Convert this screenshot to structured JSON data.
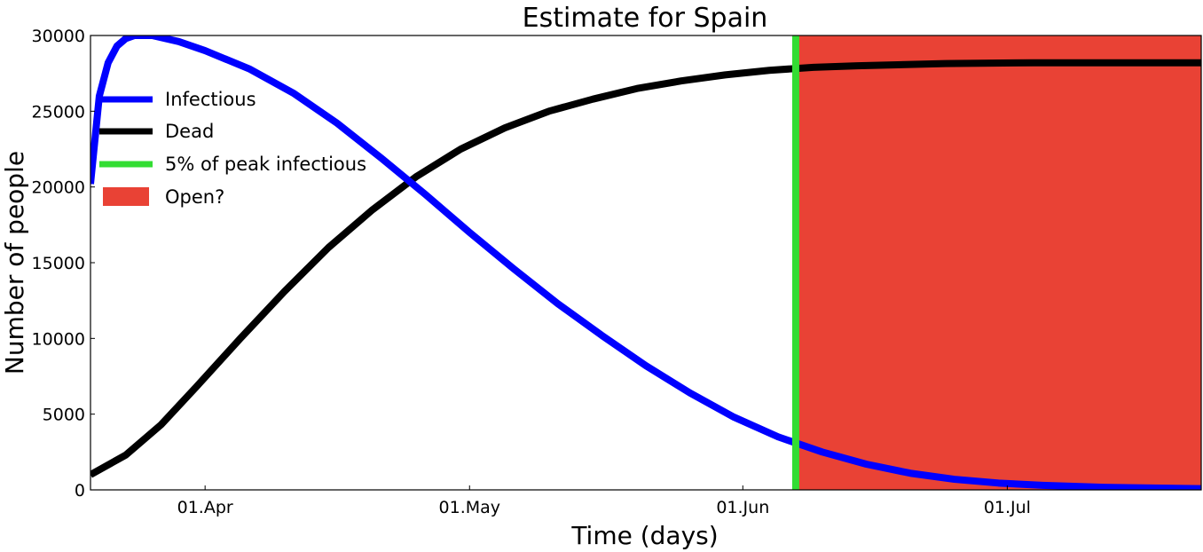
{
  "chart_data": {
    "type": "line",
    "title": "Estimate for Spain",
    "xlabel": "Time (days)",
    "ylabel": "Number of people",
    "x_domain": [
      "2020-03-19",
      "2020-07-23"
    ],
    "ylim": [
      0,
      30000
    ],
    "x_ticks": [
      {
        "date": "2020-04-01",
        "label": "01.Apr"
      },
      {
        "date": "2020-05-01",
        "label": "01.May"
      },
      {
        "date": "2020-06-01",
        "label": "01.Jun"
      },
      {
        "date": "2020-07-01",
        "label": "01.Jul"
      }
    ],
    "y_ticks": [
      0,
      5000,
      10000,
      15000,
      20000,
      25000,
      30000
    ],
    "grid": false,
    "legend_position": "upper-left",
    "series": [
      {
        "name": "Infectious",
        "color": "#0000ff",
        "points": [
          [
            "2020-03-19",
            20200
          ],
          [
            "2020-03-20",
            26000
          ],
          [
            "2020-03-21",
            28200
          ],
          [
            "2020-03-22",
            29300
          ],
          [
            "2020-03-23",
            29800
          ],
          [
            "2020-03-24",
            30000
          ],
          [
            "2020-03-26",
            30000
          ],
          [
            "2020-03-29",
            29600
          ],
          [
            "2020-04-01",
            29000
          ],
          [
            "2020-04-06",
            27800
          ],
          [
            "2020-04-11",
            26200
          ],
          [
            "2020-04-16",
            24200
          ],
          [
            "2020-04-21",
            21900
          ],
          [
            "2020-04-26",
            19500
          ],
          [
            "2020-05-01",
            17000
          ],
          [
            "2020-05-06",
            14600
          ],
          [
            "2020-05-11",
            12300
          ],
          [
            "2020-05-16",
            10200
          ],
          [
            "2020-05-21",
            8200
          ],
          [
            "2020-05-26",
            6400
          ],
          [
            "2020-05-31",
            4800
          ],
          [
            "2020-06-05",
            3500
          ],
          [
            "2020-06-10",
            2500
          ],
          [
            "2020-06-15",
            1700
          ],
          [
            "2020-06-20",
            1100
          ],
          [
            "2020-06-25",
            700
          ],
          [
            "2020-06-30",
            450
          ],
          [
            "2020-07-05",
            300
          ],
          [
            "2020-07-12",
            170
          ],
          [
            "2020-07-23",
            80
          ]
        ]
      },
      {
        "name": "Dead",
        "color": "#000000",
        "points": [
          [
            "2020-03-19",
            1000
          ],
          [
            "2020-03-23",
            2300
          ],
          [
            "2020-03-27",
            4300
          ],
          [
            "2020-03-31",
            6800
          ],
          [
            "2020-04-05",
            10000
          ],
          [
            "2020-04-10",
            13100
          ],
          [
            "2020-04-15",
            16000
          ],
          [
            "2020-04-20",
            18500
          ],
          [
            "2020-04-25",
            20700
          ],
          [
            "2020-04-30",
            22500
          ],
          [
            "2020-05-05",
            23900
          ],
          [
            "2020-05-10",
            25000
          ],
          [
            "2020-05-15",
            25800
          ],
          [
            "2020-05-20",
            26500
          ],
          [
            "2020-05-25",
            27000
          ],
          [
            "2020-05-30",
            27400
          ],
          [
            "2020-06-04",
            27700
          ],
          [
            "2020-06-09",
            27900
          ],
          [
            "2020-06-14",
            28000
          ],
          [
            "2020-06-24",
            28150
          ],
          [
            "2020-07-04",
            28200
          ],
          [
            "2020-07-23",
            28200
          ]
        ]
      }
    ],
    "threshold_line": {
      "name": "5% of peak infectious",
      "date": "2020-06-07",
      "color": "#33dd33"
    },
    "shaded_region": {
      "name": "Open?",
      "from": "2020-06-07",
      "to": "2020-07-23",
      "color": "#e94235"
    }
  }
}
